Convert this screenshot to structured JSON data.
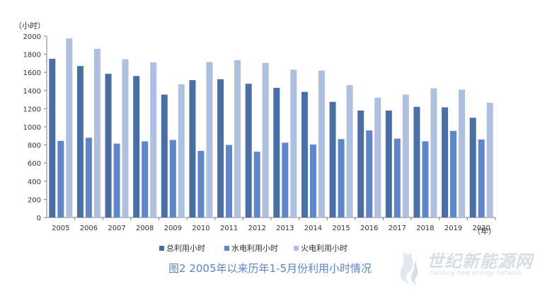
{
  "chart_data": {
    "type": "bar",
    "title": "图2  2005年以来历年1-5月份利用小时情况",
    "y_unit_label": "（小时）",
    "x_unit_label": "（年）",
    "ylim": [
      0,
      2000
    ],
    "yticks": [
      0,
      200,
      400,
      600,
      800,
      1000,
      1200,
      1400,
      1600,
      1800,
      2000
    ],
    "grid": false,
    "legend_position": "bottom",
    "categories": [
      "2005",
      "2006",
      "2007",
      "2008",
      "2009",
      "2010",
      "2011",
      "2012",
      "2013",
      "2014",
      "2015",
      "2016",
      "2017",
      "2018",
      "2019",
      "2020"
    ],
    "series": [
      {
        "name": "总利用小时",
        "color": "#4a6fa5",
        "values": [
          1750,
          1670,
          1585,
          1560,
          1355,
          1515,
          1525,
          1475,
          1430,
          1385,
          1275,
          1180,
          1180,
          1220,
          1215,
          1100
        ]
      },
      {
        "name": "水电利用小时",
        "color": "#5f86c8",
        "values": [
          845,
          880,
          815,
          840,
          855,
          735,
          800,
          725,
          825,
          805,
          865,
          960,
          870,
          840,
          955,
          860
        ]
      },
      {
        "name": "火电利用小时",
        "color": "#aebfdf",
        "values": [
          1975,
          1860,
          1745,
          1710,
          1470,
          1715,
          1735,
          1705,
          1630,
          1620,
          1460,
          1320,
          1355,
          1425,
          1410,
          1265
        ]
      }
    ]
  },
  "watermark": {
    "name": "世纪新能源网",
    "subtitle": "Century new energy network"
  }
}
